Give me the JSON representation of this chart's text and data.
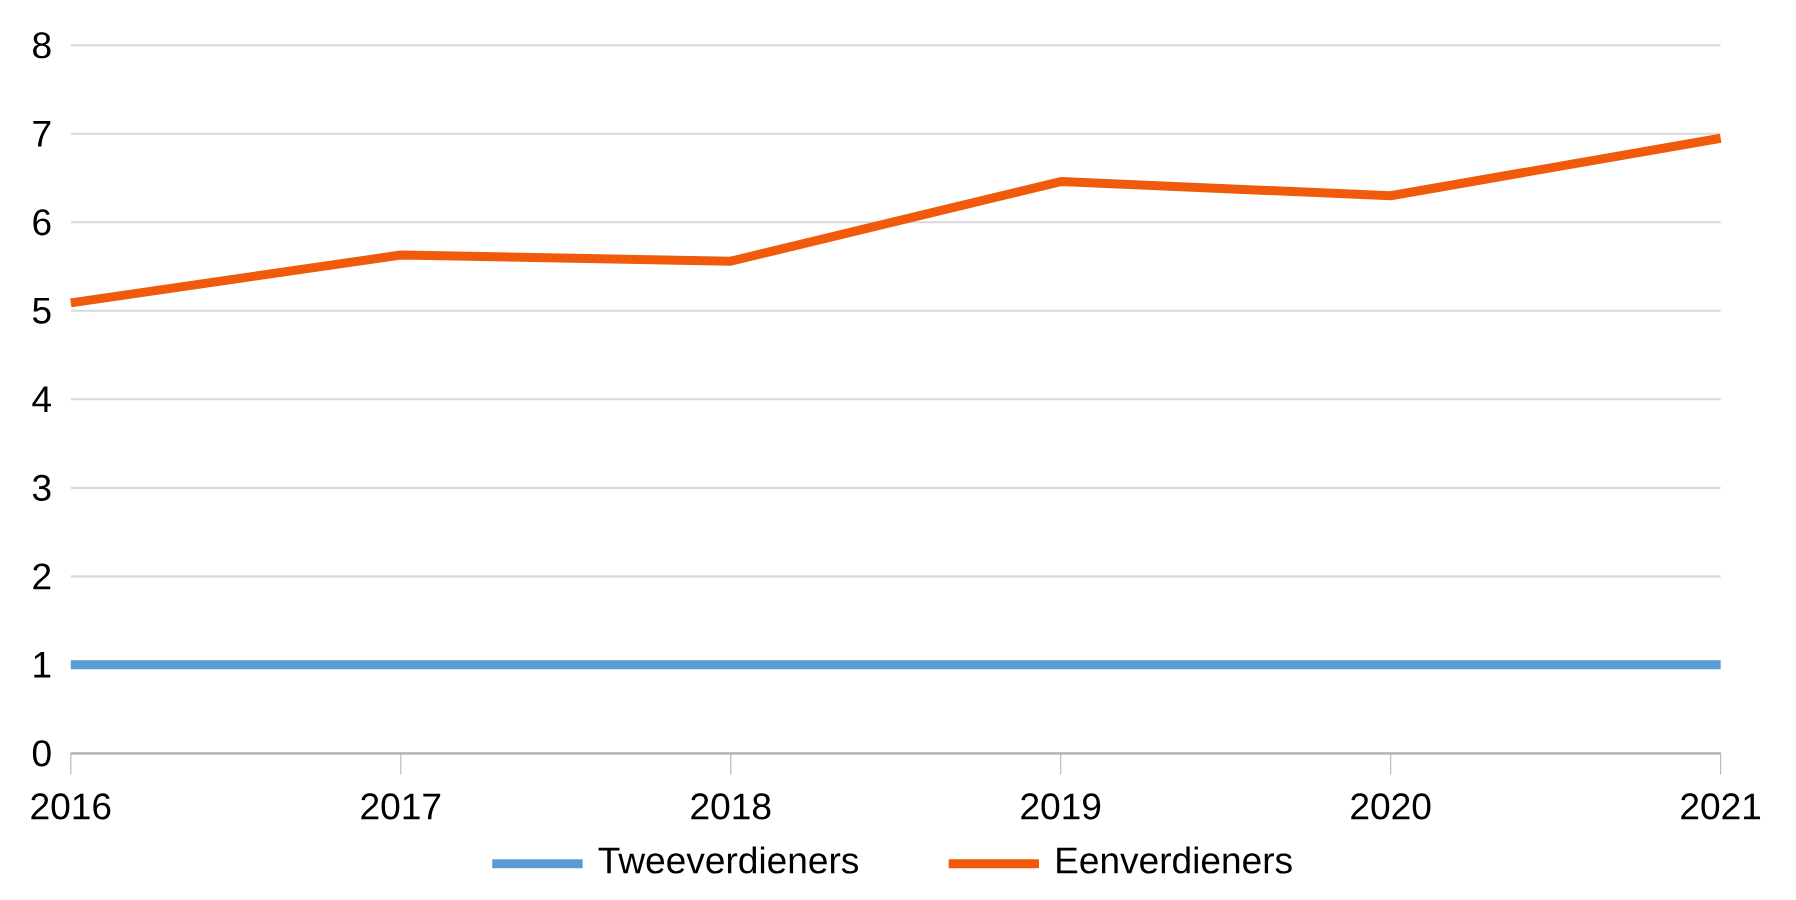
{
  "chart_data": {
    "type": "line",
    "x": [
      2016,
      2017,
      2018,
      2019,
      2020,
      2021
    ],
    "series": [
      {
        "name": "Tweeverdieners",
        "color": "#5b9bd5",
        "values": [
          1,
          1,
          1,
          1,
          1,
          1
        ]
      },
      {
        "name": "Eenverdieners",
        "color": "#f05a0a",
        "values": [
          5.09,
          5.63,
          5.56,
          6.46,
          6.3,
          6.95
        ]
      }
    ],
    "xlim": [
      2016,
      2021
    ],
    "xticks": [
      2016,
      2017,
      2018,
      2019,
      2020,
      2021
    ],
    "ylim": [
      0,
      8
    ],
    "yticks": [
      0,
      1,
      2,
      3,
      4,
      5,
      6,
      7,
      8
    ],
    "grid": "y",
    "legend": "bottom",
    "marker": "none",
    "line_style": "solid"
  }
}
